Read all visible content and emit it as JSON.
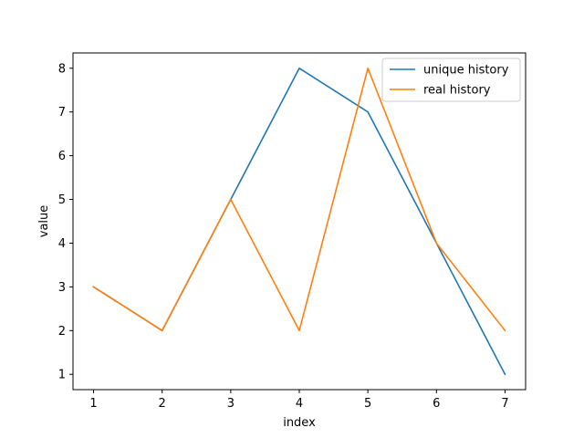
{
  "chart_data": {
    "type": "line",
    "title": "",
    "xlabel": "index",
    "ylabel": "value",
    "x": [
      1,
      2,
      3,
      4,
      5,
      6,
      7
    ],
    "xlim": [
      0.7,
      7.3
    ],
    "ylim": [
      0.65,
      8.35
    ],
    "xticks": [
      1,
      2,
      3,
      4,
      5,
      6,
      7
    ],
    "yticks": [
      1,
      2,
      3,
      4,
      5,
      6,
      7,
      8
    ],
    "grid": false,
    "legend": "top-right",
    "series": [
      {
        "name": "unique history",
        "color": "#1f77b4",
        "values": [
          3,
          2,
          5,
          8,
          7,
          4,
          1
        ]
      },
      {
        "name": "real history",
        "color": "#ff7f0e",
        "values": [
          3,
          2,
          5,
          2,
          8,
          4,
          2
        ]
      }
    ]
  }
}
